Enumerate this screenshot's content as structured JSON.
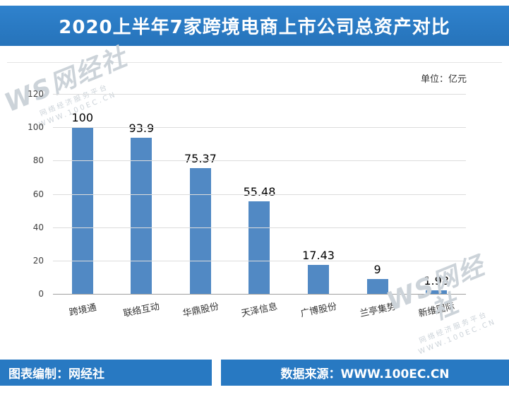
{
  "header": {
    "title": "2020上半年7家跨境电商上市公司总资产对比"
  },
  "chart": {
    "unit_label": "单位：亿元"
  },
  "chart_data": {
    "type": "bar",
    "title": "2020上半年7家跨境电商上市公司总资产对比",
    "categories": [
      "跨境通",
      "联络互动",
      "华鼎股份",
      "天泽信息",
      "广博股份",
      "兰亭集势",
      "新维国际"
    ],
    "values": [
      100,
      93.9,
      75.37,
      55.48,
      17.43,
      9,
      1.98
    ],
    "value_labels": [
      "100",
      "93.9",
      "75.37",
      "55.48",
      "17.43",
      "9",
      "1.98"
    ],
    "xlabel": "",
    "ylabel": "",
    "ylim": [
      0,
      120
    ],
    "yticks": [
      0,
      20,
      40,
      60,
      80,
      100,
      120
    ],
    "grid": true,
    "legend": "none",
    "bar_color": "#5189c4"
  },
  "footer": {
    "left": "图表编制：网经社",
    "right": "数据来源：WWW.100EC.CN"
  },
  "watermark": {
    "brand": "WS网经社",
    "tagline": "网络经济服务平台",
    "site": "WWW.100EC.CN"
  },
  "colors": {
    "banner_blue": "#2879c2",
    "bar_blue": "#5189c4",
    "gridline": "#dcdcdc"
  }
}
